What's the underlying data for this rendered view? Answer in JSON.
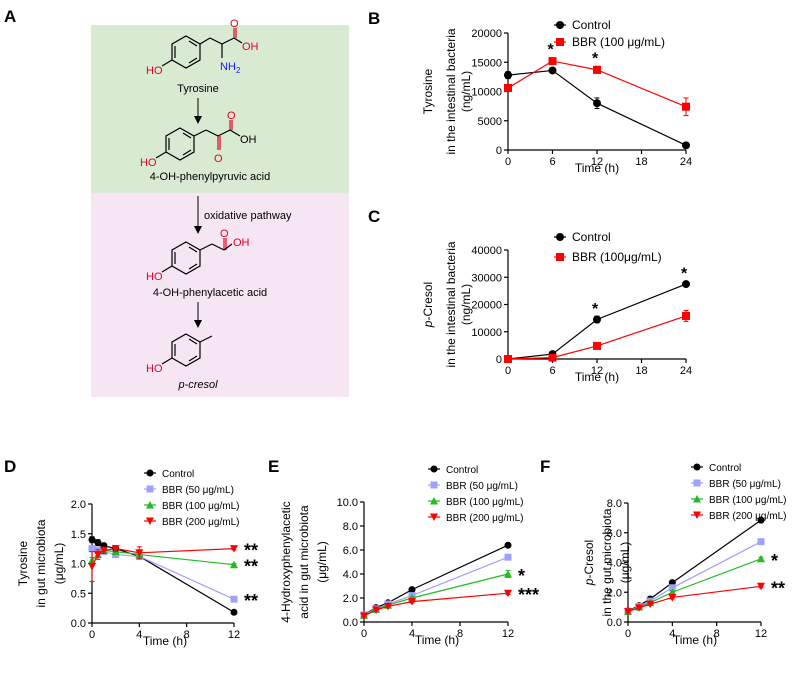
{
  "panel_labels": {
    "a": "A",
    "b": "B",
    "c": "C",
    "d": "D",
    "e": "E",
    "f": "F"
  },
  "pathway": {
    "steps": [
      "Tyrosine",
      "4-OH-phenylpyruvic acid",
      "4-OH-phenylacetic acid",
      "p-cresol"
    ],
    "arrow_label": "oxidative pathway",
    "atoms": {
      "oh": "OH",
      "nh2": "NH",
      "nh2_sub": "2",
      "ho": "HO",
      "o": "O"
    },
    "colors": {
      "top_bg": "#d9ead3",
      "bottom_bg": "#f6e6f4",
      "red": "#e6001f",
      "blue": "#1a1aff"
    }
  },
  "series_colors": {
    "control": "#000000",
    "bbr": "#ff0000",
    "bbr50": "#a0a0ff",
    "bbr100": "#22bb22",
    "bbr200": "#ff0000",
    "err_light": "#80c0ff"
  },
  "chart_data": [
    {
      "id": "b",
      "type": "line",
      "title": "",
      "ylabel_lines": [
        "Tyrosine",
        "in the intestinal bacteria",
        "(ng/mL)"
      ],
      "xlabel": "Time (h)",
      "xlim": [
        0,
        24
      ],
      "ylim": [
        0,
        20000
      ],
      "xticks": [
        0,
        6,
        12,
        18,
        24
      ],
      "yticks": [
        0,
        5000,
        10000,
        15000,
        20000
      ],
      "xtick_labels": [
        "0",
        "6",
        "12",
        "18",
        "24"
      ],
      "ytick_labels": [
        "0",
        "5000",
        "10000",
        "15000",
        "20000"
      ],
      "legend": {
        "position": "top-right"
      },
      "series": [
        {
          "name": "Control",
          "color_key": "control",
          "marker": "circle",
          "x": [
            0,
            6,
            12,
            24
          ],
          "y": [
            12800,
            13600,
            8000,
            800
          ],
          "err": [
            600,
            250,
            900,
            100
          ]
        },
        {
          "name": "BBR (100 μg/mL)",
          "color_key": "bbr",
          "marker": "square",
          "x": [
            0,
            6,
            12,
            24
          ],
          "y": [
            10600,
            15200,
            13700,
            7400
          ],
          "err": [
            300,
            300,
            600,
            1500
          ]
        }
      ],
      "annotations": [
        {
          "text": "*",
          "x": 6,
          "y": 16300
        },
        {
          "text": "*",
          "x": 12,
          "y": 14800
        }
      ]
    },
    {
      "id": "c",
      "type": "line",
      "title": "",
      "ylabel_lines": [
        "p-Cresol",
        "in the intestinal bacteria",
        "(ng/mL)"
      ],
      "xlabel": "Time (h)",
      "xlim": [
        0,
        24
      ],
      "ylim": [
        0,
        40000
      ],
      "xticks": [
        0,
        6,
        12,
        18,
        24
      ],
      "yticks": [
        0,
        10000,
        20000,
        30000,
        40000
      ],
      "xtick_labels": [
        "0",
        "6",
        "12",
        "18",
        "24"
      ],
      "ytick_labels": [
        "0",
        "10000",
        "20000",
        "30000",
        "40000"
      ],
      "legend": {
        "position": "top-right"
      },
      "series": [
        {
          "name": "Control",
          "color_key": "control",
          "marker": "circle",
          "x": [
            0,
            6,
            12,
            24
          ],
          "y": [
            0,
            1800,
            14500,
            27500
          ],
          "err": [
            200,
            300,
            1200,
            600
          ]
        },
        {
          "name": "BBR (100μg/mL)",
          "color_key": "bbr",
          "marker": "square",
          "x": [
            0,
            6,
            12,
            24
          ],
          "y": [
            0,
            500,
            4800,
            15800
          ],
          "err": [
            200,
            200,
            400,
            2000
          ]
        }
      ],
      "annotations": [
        {
          "text": "*",
          "x": 12,
          "y": 16500
        },
        {
          "text": "*",
          "x": 24,
          "y": 29500
        }
      ]
    },
    {
      "id": "d",
      "type": "line",
      "title": "",
      "ylabel_lines": [
        "Tyrosine",
        "in gut microbiota",
        "(μg/mL)"
      ],
      "xlabel": "Time (h)",
      "xlim": [
        0,
        12
      ],
      "ylim": [
        0,
        2.0
      ],
      "xticks": [
        0,
        4,
        8,
        12
      ],
      "yticks": [
        0,
        0.5,
        1.0,
        1.5,
        2.0
      ],
      "xtick_labels": [
        "0",
        "4",
        "8",
        "12"
      ],
      "ytick_labels": [
        "0.0",
        "0.5",
        "1.0",
        "1.5",
        "2.0"
      ],
      "legend": {
        "position": "top-right"
      },
      "series": [
        {
          "name": "Control",
          "color_key": "control",
          "marker": "circle",
          "x": [
            0,
            0.5,
            1,
            2,
            4,
            12
          ],
          "y": [
            1.4,
            1.35,
            1.3,
            1.25,
            1.12,
            0.18
          ],
          "err": [
            0.05,
            0.05,
            0.04,
            0.04,
            0.05,
            0.02
          ]
        },
        {
          "name": "BBR (50 μg/mL)",
          "color_key": "bbr50",
          "marker": "square",
          "x": [
            0,
            0.5,
            1,
            2,
            4,
            12
          ],
          "y": [
            1.25,
            1.22,
            1.2,
            1.15,
            1.12,
            0.4
          ],
          "err": [
            0.05,
            0.05,
            0.04,
            0.04,
            0.05,
            0.02
          ]
        },
        {
          "name": "BBR (100 μg/mL)",
          "color_key": "bbr100",
          "marker": "triangle-up",
          "x": [
            0,
            0.5,
            1,
            2,
            4,
            12
          ],
          "y": [
            1.05,
            1.15,
            1.22,
            1.2,
            1.15,
            0.98
          ],
          "err": [
            0.05,
            0.05,
            0.04,
            0.04,
            0.05,
            0.02
          ]
        },
        {
          "name": "BBR (200 μg/mL)",
          "color_key": "bbr200",
          "marker": "triangle-down",
          "x": [
            0,
            0.5,
            1,
            2,
            4,
            12
          ],
          "y": [
            0.95,
            1.15,
            1.22,
            1.25,
            1.18,
            1.25
          ],
          "err": [
            0.25,
            0.08,
            0.05,
            0.05,
            0.1,
            0.02
          ]
        }
      ],
      "annotations": [
        {
          "text": "**",
          "series": "BBR (200 μg/mL)"
        },
        {
          "text": "**",
          "series": "BBR (100 μg/mL)"
        },
        {
          "text": "**",
          "series": "BBR (50 μg/mL)"
        }
      ]
    },
    {
      "id": "e",
      "type": "line",
      "title": "",
      "ylabel_lines": [
        "4-Hydroxyphenylacetic",
        "acid in gut microbiota",
        "(μg/mL)"
      ],
      "xlabel": "Time (h)",
      "xlim": [
        0,
        12
      ],
      "ylim": [
        0,
        10
      ],
      "xticks": [
        0,
        4,
        8,
        12
      ],
      "yticks": [
        0,
        2,
        4,
        6,
        8,
        10
      ],
      "xtick_labels": [
        "0",
        "4",
        "8",
        "12"
      ],
      "ytick_labels": [
        "0.0",
        "2.0",
        "4.0",
        "6.0",
        "8.0",
        "10.0"
      ],
      "legend": {
        "position": "top-right"
      },
      "series": [
        {
          "name": "Control",
          "color_key": "control",
          "marker": "circle",
          "x": [
            0,
            1,
            2,
            4,
            12
          ],
          "y": [
            0.6,
            1.2,
            1.6,
            2.7,
            6.4
          ],
          "err": [
            0.05,
            0.05,
            0.05,
            0.1,
            0.1
          ]
        },
        {
          "name": "BBR (50 μg/mL)",
          "color_key": "bbr50",
          "marker": "square",
          "x": [
            0,
            1,
            2,
            4,
            12
          ],
          "y": [
            0.6,
            1.1,
            1.5,
            2.2,
            5.4
          ],
          "err": [
            0.05,
            0.05,
            0.05,
            0.1,
            0.2
          ]
        },
        {
          "name": "BBR (100 μg/mL)",
          "color_key": "bbr100",
          "marker": "triangle-up",
          "x": [
            0,
            1,
            2,
            4,
            12
          ],
          "y": [
            0.55,
            1.05,
            1.4,
            2.0,
            4.0
          ],
          "err": [
            0.05,
            0.05,
            0.05,
            0.1,
            0.3
          ]
        },
        {
          "name": "BBR (200 μg/mL)",
          "color_key": "bbr200",
          "marker": "triangle-down",
          "x": [
            0,
            1,
            2,
            4,
            12
          ],
          "y": [
            0.5,
            1.0,
            1.3,
            1.7,
            2.4
          ],
          "err": [
            0.05,
            0.05,
            0.05,
            0.1,
            0.1
          ]
        }
      ],
      "annotations": [
        {
          "text": "*",
          "series": "BBR (100 μg/mL)"
        },
        {
          "text": "***",
          "series": "BBR (200 μg/mL)"
        }
      ]
    },
    {
      "id": "f",
      "type": "line",
      "title": "",
      "ylabel_lines": [
        "p-Cresol",
        "in the gut microbiota",
        "(μg/mL)"
      ],
      "xlabel": "Time (h)",
      "xlim": [
        0,
        12
      ],
      "ylim": [
        0,
        8
      ],
      "xticks": [
        0,
        4,
        8,
        12
      ],
      "yticks": [
        0,
        2,
        4,
        6,
        8
      ],
      "xtick_labels": [
        "0",
        "4",
        "8",
        "12"
      ],
      "ytick_labels": [
        "0.0",
        "2.0",
        "4.0",
        "6.0",
        "8.0"
      ],
      "legend": {
        "position": "top-right"
      },
      "series": [
        {
          "name": "Control",
          "color_key": "control",
          "marker": "circle",
          "x": [
            0,
            1,
            2,
            4,
            12
          ],
          "y": [
            0.75,
            1.1,
            1.55,
            2.65,
            6.85
          ],
          "err": [
            0.05,
            0.05,
            0.05,
            0.1,
            0.15
          ]
        },
        {
          "name": "BBR (50 μg/mL)",
          "color_key": "bbr50",
          "marker": "square",
          "x": [
            0,
            1,
            2,
            4,
            12
          ],
          "y": [
            0.72,
            1.05,
            1.4,
            2.3,
            5.4
          ],
          "err": [
            0.05,
            0.05,
            0.05,
            0.1,
            0.1
          ]
        },
        {
          "name": "BBR (100 μg/mL)",
          "color_key": "bbr100",
          "marker": "triangle-up",
          "x": [
            0,
            1,
            2,
            4,
            12
          ],
          "y": [
            0.7,
            1.0,
            1.3,
            2.0,
            4.25
          ],
          "err": [
            0.05,
            0.05,
            0.05,
            0.1,
            0.1
          ]
        },
        {
          "name": "BBR (200 μg/mL)",
          "color_key": "bbr200",
          "marker": "triangle-down",
          "x": [
            0,
            1,
            2,
            4,
            12
          ],
          "y": [
            0.7,
            0.95,
            1.2,
            1.65,
            2.4
          ],
          "err": [
            0.05,
            0.05,
            0.05,
            0.1,
            0.1
          ]
        }
      ],
      "annotations": [
        {
          "text": "*",
          "series": "BBR (100 μg/mL)"
        },
        {
          "text": "**",
          "series": "BBR (200 μg/mL)"
        }
      ]
    }
  ]
}
